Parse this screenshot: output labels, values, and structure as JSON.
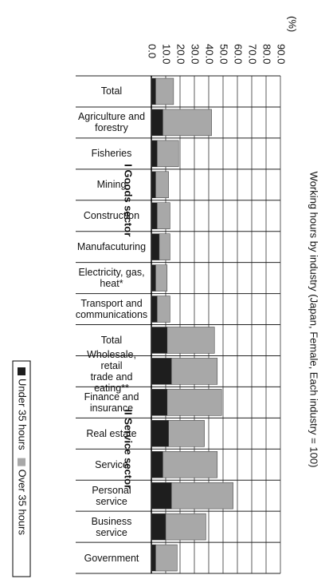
{
  "chart_data": {
    "type": "bar",
    "stacked": true,
    "title": "Working hours by industry (Japan, Female, Each industry = 100)",
    "unit_label": "(%)",
    "groups": [
      {
        "label": "I Goods sector",
        "start": 0,
        "end": 7
      },
      {
        "label": "II Service sector",
        "start": 8,
        "end": 15
      }
    ],
    "categories": [
      "Total",
      "Agriculture and\nforestry",
      "Fisheries",
      "Mining",
      "Construction",
      "Manufacuturing",
      "Electricity, gas,\nheat*",
      "Transport and\ncommunications",
      "Total",
      "Wholesale, retail\ntrade and eating**",
      "Finance and\ninsurance",
      "Real estate",
      "Service",
      "Personal service",
      "Business\nservice",
      "Government"
    ],
    "series": [
      {
        "name": "Under 35 hours",
        "color": "#1e1e1e",
        "values": [
          3,
          8,
          4,
          3,
          4,
          5.5,
          3,
          4,
          11,
          14,
          11,
          12,
          8,
          14,
          10,
          3
        ]
      },
      {
        "name": "Over 35 hours",
        "color": "#a8a8a8",
        "values": [
          12.5,
          34,
          15,
          9,
          9,
          7.5,
          8,
          9,
          33,
          32,
          38,
          25,
          38,
          43,
          28,
          15
        ]
      }
    ],
    "xlim": [
      0,
      90
    ],
    "xticks": [
      {
        "value": 0,
        "label": "0.0"
      },
      {
        "value": 10,
        "label": "10.0"
      },
      {
        "value": 20,
        "label": "20.0"
      },
      {
        "value": 30,
        "label": "30.0"
      },
      {
        "value": 40,
        "label": "40.0"
      },
      {
        "value": 50,
        "label": "50.0"
      },
      {
        "value": 60,
        "label": "60.0"
      },
      {
        "value": 70,
        "label": "70.0"
      },
      {
        "value": 80,
        "label": "80.0"
      },
      {
        "value": 90,
        "label": "90.0"
      }
    ],
    "grid": true
  }
}
